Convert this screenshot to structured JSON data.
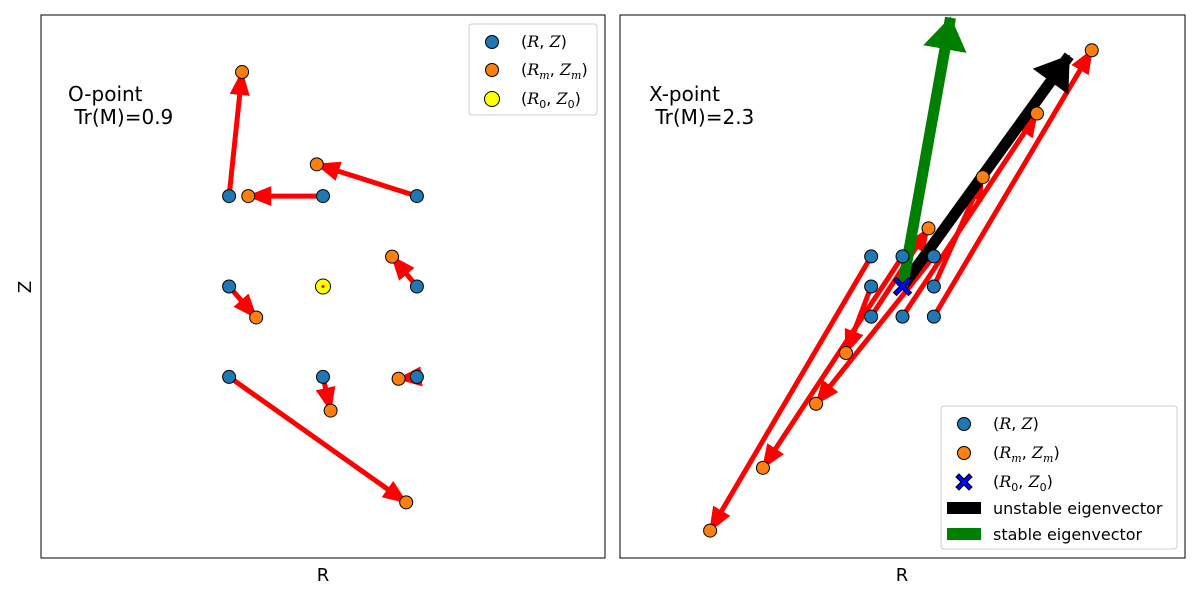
{
  "chart_data": [
    {
      "type": "scatter",
      "panel": "O-point",
      "xlabel": "R",
      "ylabel": "Z",
      "annotation_lines": [
        "O-point",
        " Tr(M)=0.9"
      ],
      "xlim": [
        -1.0,
        1.0
      ],
      "ylim": [
        -1.0,
        1.0
      ],
      "grid": false,
      "legend_position": "top-right",
      "legend": [
        {
          "label_main": "(R, Z)",
          "marker": "circle",
          "color": "#1f77b4"
        },
        {
          "label_main": "(R_m, Z_m)",
          "marker": "circle",
          "color": "#ff7f0e"
        },
        {
          "label_main": "(R_0, Z_0)",
          "marker": "circle",
          "color": "#ffff00"
        }
      ],
      "initial_points": [
        [
          -0.333,
          0.333
        ],
        [
          0.0,
          0.333
        ],
        [
          0.333,
          0.333
        ],
        [
          -0.333,
          0.0
        ],
        [
          0.333,
          0.0
        ],
        [
          -0.333,
          -0.333
        ],
        [
          0.0,
          -0.333
        ],
        [
          0.333,
          -0.333
        ]
      ],
      "mapped_points": [
        [
          -0.287,
          0.79
        ],
        [
          -0.265,
          0.333
        ],
        [
          -0.022,
          0.45
        ],
        [
          -0.237,
          -0.114
        ],
        [
          0.245,
          0.11
        ],
        [
          0.295,
          -0.795
        ],
        [
          0.027,
          -0.457
        ],
        [
          0.268,
          -0.34
        ]
      ],
      "fixed_point": [
        0.0,
        0.0
      ],
      "arrow_color": "#ff0000"
    },
    {
      "type": "scatter",
      "panel": "X-point",
      "xlabel": "R",
      "ylabel": "",
      "annotation_lines": [
        "X-point",
        " Tr(M)=2.3"
      ],
      "xlim": [
        -1.0,
        1.0
      ],
      "ylim": [
        -1.0,
        1.0
      ],
      "grid": false,
      "legend_position": "bottom-right",
      "legend": [
        {
          "label_main": "(R, Z)",
          "marker": "circle",
          "color": "#1f77b4"
        },
        {
          "label_main": "(R_m, Z_m)",
          "marker": "circle",
          "color": "#ff7f0e"
        },
        {
          "label_main": "(R_0, Z_0)",
          "marker": "x",
          "color": "#0000ff"
        },
        {
          "label_main": "unstable eigenvector",
          "marker": "patch",
          "color": "#000000"
        },
        {
          "label_main": "stable eigenvector",
          "marker": "patch",
          "color": "#008000"
        }
      ],
      "initial_points": [
        [
          -0.111,
          0.111
        ],
        [
          0.0,
          0.111
        ],
        [
          0.111,
          0.111
        ],
        [
          -0.111,
          0.0
        ],
        [
          0.111,
          0.0
        ],
        [
          -0.111,
          -0.111
        ],
        [
          0.0,
          -0.111
        ],
        [
          0.111,
          -0.111
        ]
      ],
      "mapped_points": [
        [
          -0.681,
          -0.899
        ],
        [
          -0.494,
          -0.668
        ],
        [
          -0.306,
          -0.432
        ],
        [
          -0.2,
          -0.245
        ],
        [
          0.284,
          0.403
        ],
        [
          0.092,
          0.214
        ],
        [
          0.476,
          0.637
        ],
        [
          0.67,
          0.87
        ]
      ],
      "fixed_point": [
        0.0,
        0.0
      ],
      "unstable_eigenvector": [
        0.59,
        0.85
      ],
      "stable_eigenvector": [
        0.17,
        0.99
      ],
      "arrow_color": "#ff0000"
    }
  ]
}
